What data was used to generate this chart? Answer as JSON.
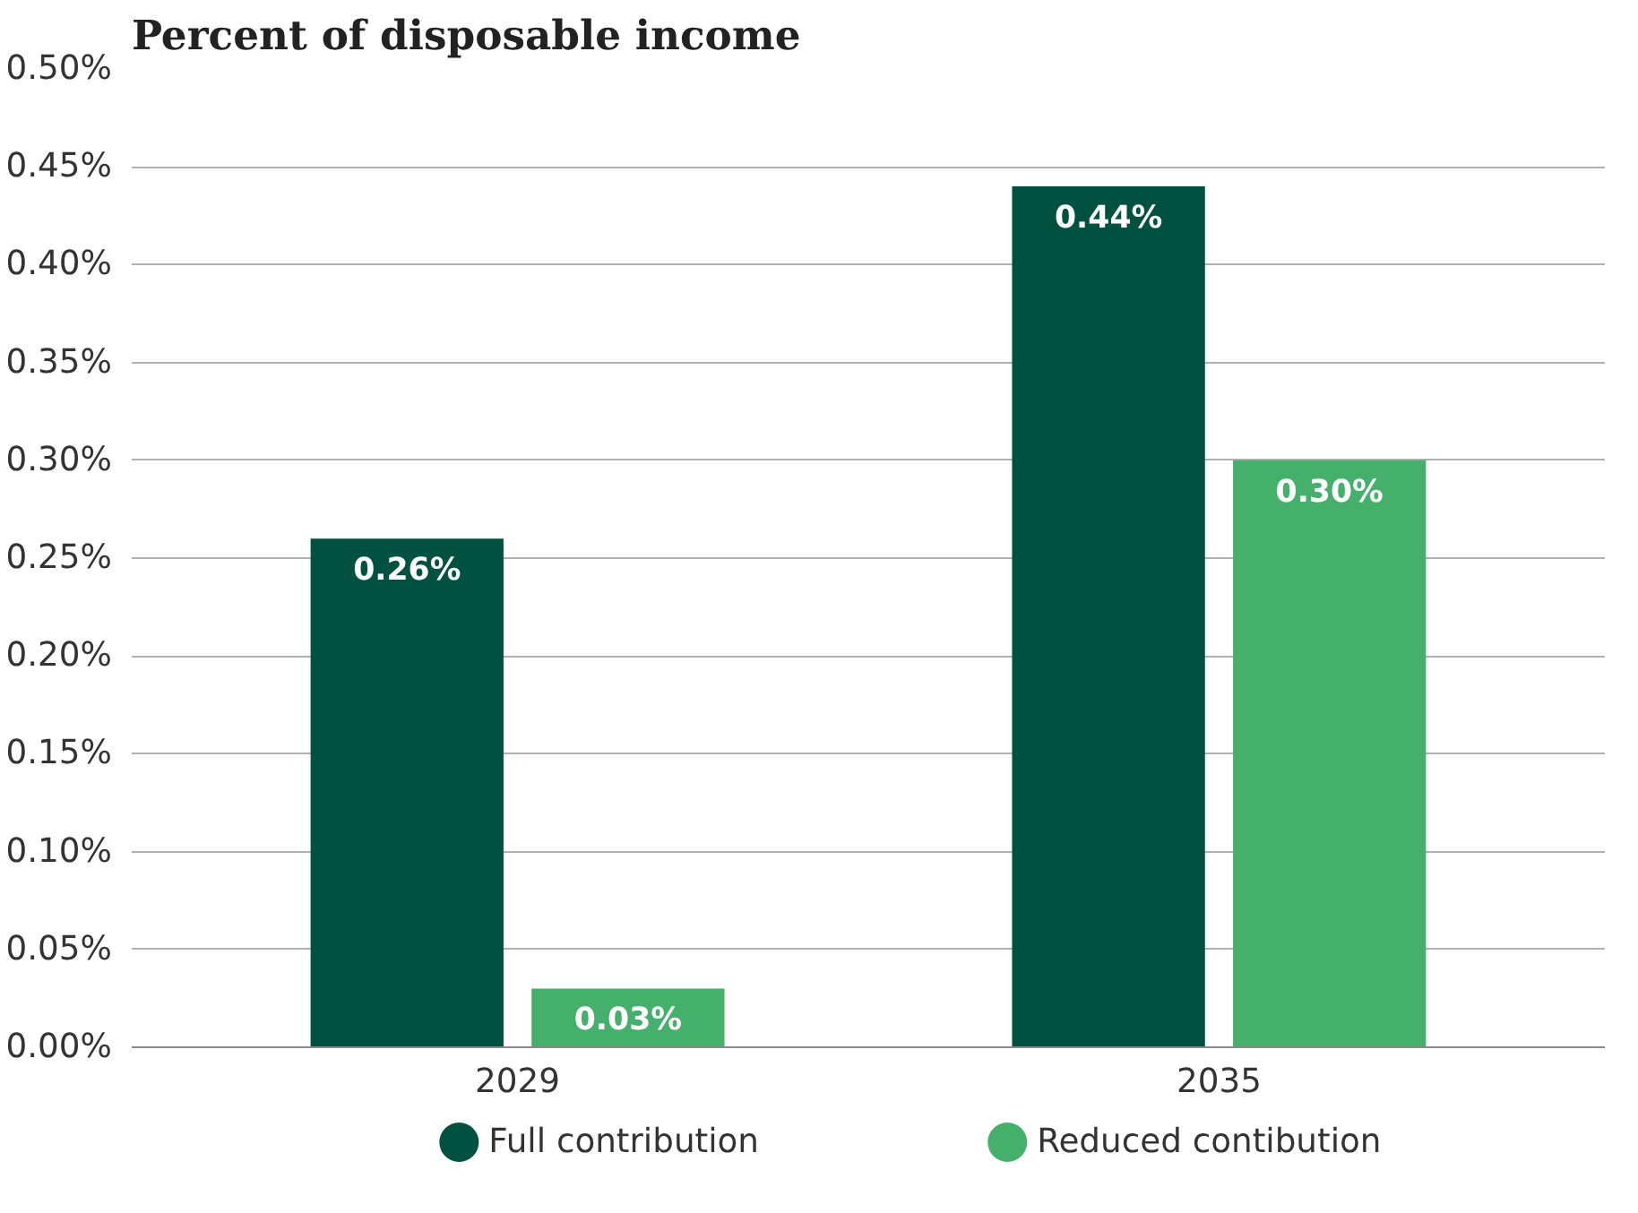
{
  "chart_data": {
    "type": "bar",
    "title": "Percent of disposable income",
    "categories": [
      "2029",
      "2035"
    ],
    "series": [
      {
        "name": "Full contribution",
        "color": "#00513f",
        "values": [
          0.26,
          0.44
        ],
        "value_labels": [
          "0.26%",
          "0.44%"
        ]
      },
      {
        "name": "Reduced contibution",
        "color": "#45b06c",
        "values": [
          0.03,
          0.3
        ],
        "value_labels": [
          "0.03%",
          "0.30%"
        ]
      }
    ],
    "ylim": [
      0,
      0.5
    ],
    "yticks": [
      {
        "value": 0,
        "label": "0.00%"
      },
      {
        "value": 0.05,
        "label": "0.05%"
      },
      {
        "value": 0.1,
        "label": "0.10%"
      },
      {
        "value": 0.15,
        "label": "0.15%"
      },
      {
        "value": 0.2,
        "label": "0.20%"
      },
      {
        "value": 0.25,
        "label": "0.25%"
      },
      {
        "value": 0.3,
        "label": "0.30%"
      },
      {
        "value": 0.35,
        "label": "0.35%"
      },
      {
        "value": 0.4,
        "label": "0.40%"
      },
      {
        "value": 0.45,
        "label": "0.45%"
      },
      {
        "value": 0.5,
        "label": "0.50%"
      }
    ],
    "grid": "y",
    "legend": "bottom",
    "marker": "circle"
  }
}
